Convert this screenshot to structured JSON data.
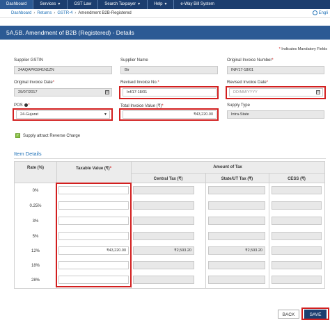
{
  "nav": {
    "items": [
      {
        "label": "Dashboard",
        "caret": false
      },
      {
        "label": "Services",
        "caret": true
      },
      {
        "label": "GST Law",
        "caret": false
      },
      {
        "label": "Search Taxpayer",
        "caret": true
      },
      {
        "label": "Help",
        "caret": true
      },
      {
        "label": "e-Way Bill System",
        "caret": false
      }
    ]
  },
  "breadcrumb": {
    "items": [
      "Dashboard",
      "Returns",
      "GSTR-4"
    ],
    "current": "Amendment B2B-Registered",
    "language": "Engli"
  },
  "page": {
    "title": "5A,5B. Amendment of B2B (Registered) - Details",
    "mandatory_star": "*",
    "mandatory_note": "Indicates Mandatory Fields"
  },
  "form": {
    "supplier_gstin": {
      "label": "Supplier GSTIN",
      "value": "24AQAPK5941N1ZN"
    },
    "supplier_name": {
      "label": "Supplier Name",
      "value": "Bir"
    },
    "original_invoice_number": {
      "label": "Original Invoice Number",
      "star": "*",
      "value": "INF/17-18/01"
    },
    "original_invoice_date": {
      "label": "Original Invoice Date",
      "star": "*",
      "value": "29/07/2017"
    },
    "revised_invoice_no": {
      "label": "Revised Invoice No.",
      "star": "*",
      "value": "Inf/17-18/01"
    },
    "revised_invoice_date": {
      "label": "Revised Invoice Date",
      "star": "*",
      "placeholder": "DD/MM/YYYY"
    },
    "pos": {
      "label": "POS",
      "value": "24-Gujarat"
    },
    "total_invoice_value": {
      "label": "Total Invoice Value (₹)",
      "star": "*",
      "value": "₹43,220.00"
    },
    "supply_type": {
      "label": "Supply Type",
      "value": "Intra-State"
    },
    "reverse_charge": {
      "label": "Supply attract Reverse Charge",
      "checked": true
    }
  },
  "item_details": {
    "title": "Item Details",
    "headers": {
      "rate": "Rate (%)",
      "taxable": "Taxable Value (₹)",
      "taxable_star": "*",
      "amount_of_tax": "Amount of Tax",
      "central": "Central Tax (₹)",
      "state": "State/UT Tax (₹)",
      "cess": "CESS (₹)"
    },
    "rows": [
      {
        "rate": "0%",
        "taxable": "",
        "central": "",
        "state": "",
        "cess": ""
      },
      {
        "rate": "0.25%",
        "taxable": "",
        "central": "",
        "state": "",
        "cess": ""
      },
      {
        "rate": "3%",
        "taxable": "",
        "central": "",
        "state": "",
        "cess": ""
      },
      {
        "rate": "5%",
        "taxable": "",
        "central": "",
        "state": "",
        "cess": ""
      },
      {
        "rate": "12%",
        "taxable": "₹43,220.00",
        "central": "₹2,593.20",
        "state": "₹2,593.20",
        "cess": ""
      },
      {
        "rate": "18%",
        "taxable": "",
        "central": "",
        "state": "",
        "cess": ""
      },
      {
        "rate": "28%",
        "taxable": "",
        "central": "",
        "state": "",
        "cess": ""
      }
    ]
  },
  "buttons": {
    "back": "BACK",
    "save": "SAVE"
  },
  "colors": {
    "nav": "#1c3e6f",
    "title_bar": "#2c5a94",
    "highlight": "#d21f1f",
    "link": "#1c6fb6"
  }
}
